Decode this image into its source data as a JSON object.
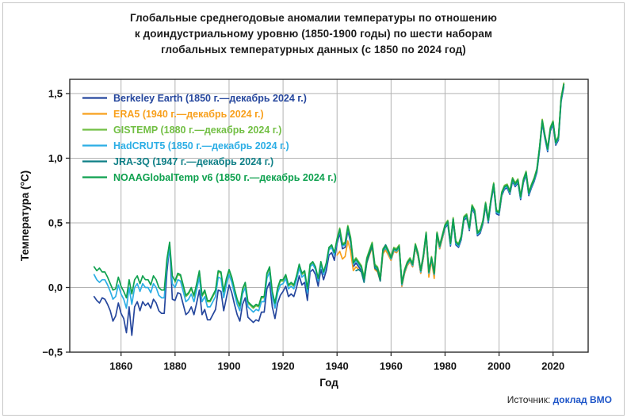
{
  "title": {
    "lines": [
      "Глобальные среднегодовые аномалии температуры по отношению",
      "к доиндустриальному уровню (1850-1900 годы) по шести наборам",
      "глобальных температурных данных (с 1850 по 2024 год)"
    ],
    "color": "#1c1c1c"
  },
  "source": {
    "label": "Источник:",
    "link": "доклад ВМО",
    "link_color": "#1f56c8"
  },
  "colors": {
    "frame": "#2b2b2b",
    "grid": "#b3b3b3",
    "tick_text": "#111111"
  },
  "chart_data": {
    "type": "line",
    "title": "Глобальные среднегодовые аномалии температуры по отношению к доиндустриальному уровню (1850-1900 годы) по шести наборам глобальных температурных данных (с 1850 по 2024 год)",
    "xlabel": "Год",
    "ylabel": "Температура (°C)",
    "xlim": [
      1841,
      2033
    ],
    "ylim": [
      -0.5,
      1.61
    ],
    "x_ticks": [
      1860,
      1880,
      1900,
      1920,
      1940,
      1960,
      1980,
      2000,
      2020
    ],
    "y_ticks": [
      -0.5,
      0.0,
      0.5,
      1.0,
      1.5
    ],
    "y_tick_labels": [
      "−0,5",
      "0,0",
      "0,5",
      "1,0",
      "1,5"
    ],
    "grid": true,
    "legend_position": "upper-left",
    "series": [
      {
        "name": "Berkeley Earth",
        "label": "Berkeley Earth (1850 г.—декабрь 2024 г.)",
        "color": "#26479d",
        "start_year": 1850,
        "values": [
          -0.07,
          -0.1,
          -0.12,
          -0.08,
          -0.09,
          -0.13,
          -0.18,
          -0.26,
          -0.22,
          -0.12,
          -0.2,
          -0.24,
          -0.35,
          -0.15,
          -0.37,
          -0.15,
          -0.11,
          -0.18,
          -0.11,
          -0.14,
          -0.12,
          -0.16,
          -0.09,
          -0.12,
          -0.18,
          -0.2,
          -0.2,
          0.12,
          0.33,
          -0.09,
          -0.1,
          -0.04,
          -0.05,
          -0.13,
          -0.21,
          -0.19,
          -0.15,
          -0.21,
          -0.12,
          -0.02,
          -0.21,
          -0.17,
          -0.25,
          -0.25,
          -0.21,
          -0.17,
          -0.02,
          -0.03,
          -0.18,
          -0.08,
          0.02,
          -0.04,
          -0.13,
          -0.21,
          -0.26,
          -0.13,
          -0.08,
          -0.23,
          -0.25,
          -0.27,
          -0.25,
          -0.26,
          -0.19,
          -0.19,
          -0.01,
          0.04,
          -0.15,
          -0.24,
          -0.12,
          -0.06,
          -0.03,
          0.01,
          -0.07,
          -0.05,
          -0.07,
          0.0,
          0.09,
          0.02,
          0.04,
          -0.1,
          0.12,
          0.14,
          0.1,
          0.01,
          0.14,
          0.06,
          0.13,
          0.25,
          0.27,
          0.21,
          0.34,
          0.42,
          0.3,
          0.31,
          0.44,
          0.35,
          0.16,
          0.19,
          0.16,
          0.13,
          0.05,
          0.2,
          0.26,
          0.32,
          0.15,
          0.13,
          0.05,
          0.27,
          0.3,
          0.26,
          0.21,
          0.28,
          0.27,
          0.3,
          0.01,
          0.11,
          0.17,
          0.2,
          0.16,
          0.31,
          0.24,
          0.11,
          0.23,
          0.4,
          0.1,
          0.21,
          0.09,
          0.4,
          0.3,
          0.38,
          0.46,
          0.49,
          0.32,
          0.51,
          0.33,
          0.31,
          0.37,
          0.52,
          0.54,
          0.44,
          0.61,
          0.57,
          0.4,
          0.42,
          0.49,
          0.63,
          0.5,
          0.66,
          0.78,
          0.57,
          0.56,
          0.71,
          0.76,
          0.77,
          0.72,
          0.82,
          0.78,
          0.81,
          0.68,
          0.81,
          0.87,
          0.71,
          0.77,
          0.82,
          0.89,
          1.06,
          1.27,
          1.15,
          1.05,
          1.21,
          1.26,
          1.1,
          1.14,
          1.44,
          1.55
        ]
      },
      {
        "name": "ERA5",
        "label": "ERA5 (1940 г.—декабрь 2024 г.)",
        "color": "#f8a01d",
        "start_year": 1940,
        "values": [
          0.25,
          0.28,
          0.22,
          0.24,
          0.36,
          0.28,
          0.13,
          0.16,
          0.14,
          0.12,
          0.05,
          0.19,
          0.25,
          0.31,
          0.14,
          0.12,
          0.05,
          0.26,
          0.29,
          0.25,
          0.21,
          0.28,
          0.27,
          0.3,
          0.01,
          0.11,
          0.17,
          0.2,
          0.16,
          0.31,
          0.24,
          0.11,
          0.23,
          0.4,
          0.08,
          0.21,
          0.07,
          0.4,
          0.3,
          0.38,
          0.47,
          0.51,
          0.34,
          0.53,
          0.35,
          0.33,
          0.38,
          0.54,
          0.55,
          0.45,
          0.63,
          0.59,
          0.42,
          0.43,
          0.5,
          0.65,
          0.52,
          0.68,
          0.8,
          0.59,
          0.57,
          0.72,
          0.78,
          0.79,
          0.73,
          0.84,
          0.8,
          0.82,
          0.7,
          0.83,
          0.89,
          0.73,
          0.79,
          0.84,
          0.91,
          1.08,
          1.3,
          1.17,
          1.07,
          1.23,
          1.28,
          1.11,
          1.16,
          1.47,
          1.58
        ]
      },
      {
        "name": "GISTEMP",
        "label": "GISTEMP (1880 г.—декабрь 2024 г.)",
        "color": "#72bf44",
        "start_year": 1880,
        "values": [
          0.04,
          0.1,
          0.09,
          0.01,
          -0.07,
          -0.05,
          -0.01,
          -0.07,
          0.02,
          0.12,
          -0.07,
          -0.03,
          -0.11,
          -0.11,
          -0.07,
          -0.03,
          0.12,
          0.11,
          -0.04,
          0.06,
          0.13,
          0.07,
          -0.02,
          -0.1,
          -0.15,
          -0.02,
          0.03,
          -0.12,
          -0.14,
          -0.16,
          -0.14,
          -0.15,
          -0.08,
          -0.08,
          0.1,
          0.15,
          -0.04,
          -0.13,
          -0.01,
          0.05,
          0.05,
          0.09,
          0.01,
          0.03,
          0.01,
          0.08,
          0.17,
          0.1,
          0.12,
          -0.02,
          0.17,
          0.19,
          0.15,
          0.06,
          0.19,
          0.11,
          0.18,
          0.3,
          0.32,
          0.26,
          0.38,
          0.46,
          0.34,
          0.35,
          0.48,
          0.39,
          0.2,
          0.23,
          0.2,
          0.17,
          0.08,
          0.23,
          0.29,
          0.35,
          0.18,
          0.16,
          0.08,
          0.3,
          0.33,
          0.29,
          0.24,
          0.31,
          0.3,
          0.33,
          0.04,
          0.14,
          0.2,
          0.23,
          0.19,
          0.34,
          0.27,
          0.14,
          0.26,
          0.43,
          0.13,
          0.24,
          0.12,
          0.43,
          0.33,
          0.41,
          0.49,
          0.52,
          0.35,
          0.54,
          0.36,
          0.34,
          0.4,
          0.55,
          0.57,
          0.47,
          0.64,
          0.6,
          0.43,
          0.45,
          0.52,
          0.66,
          0.53,
          0.69,
          0.81,
          0.6,
          0.59,
          0.74,
          0.79,
          0.8,
          0.75,
          0.85,
          0.81,
          0.84,
          0.71,
          0.84,
          0.9,
          0.74,
          0.8,
          0.85,
          0.92,
          1.09,
          1.3,
          1.18,
          1.08,
          1.24,
          1.29,
          1.13,
          1.17,
          1.47,
          1.58
        ]
      },
      {
        "name": "HadCRUT5",
        "label": "HadCRUT5 (1850 г.—декабрь 2024 г.)",
        "color": "#2caee5",
        "start_year": 1850,
        "values": [
          0.1,
          0.06,
          0.04,
          0.06,
          0.06,
          0.02,
          -0.03,
          -0.09,
          -0.07,
          0.02,
          -0.05,
          -0.09,
          -0.16,
          0.0,
          -0.13,
          0.0,
          0.03,
          -0.03,
          0.03,
          0.0,
          0.0,
          -0.04,
          0.03,
          0.0,
          -0.06,
          -0.08,
          -0.08,
          0.18,
          0.31,
          0.03,
          0.0,
          0.06,
          0.05,
          -0.03,
          -0.11,
          -0.09,
          -0.05,
          -0.11,
          -0.02,
          0.08,
          -0.11,
          -0.07,
          -0.15,
          -0.15,
          -0.11,
          -0.07,
          0.08,
          0.07,
          -0.08,
          0.02,
          0.1,
          0.04,
          -0.05,
          -0.13,
          -0.18,
          -0.05,
          0.0,
          -0.15,
          -0.17,
          -0.19,
          -0.17,
          -0.18,
          -0.11,
          -0.11,
          0.07,
          0.12,
          -0.07,
          -0.16,
          -0.04,
          0.02,
          0.03,
          0.07,
          -0.01,
          0.01,
          -0.01,
          0.06,
          0.15,
          0.08,
          0.1,
          -0.04,
          0.16,
          0.18,
          0.14,
          0.05,
          0.18,
          0.1,
          0.17,
          0.29,
          0.31,
          0.25,
          0.36,
          0.44,
          0.32,
          0.33,
          0.46,
          0.37,
          0.18,
          0.21,
          0.18,
          0.15,
          0.06,
          0.21,
          0.27,
          0.33,
          0.16,
          0.14,
          0.06,
          0.28,
          0.31,
          0.27,
          0.22,
          0.29,
          0.28,
          0.31,
          0.02,
          0.12,
          0.18,
          0.21,
          0.17,
          0.32,
          0.25,
          0.12,
          0.24,
          0.41,
          0.11,
          0.22,
          0.1,
          0.41,
          0.31,
          0.39,
          0.47,
          0.5,
          0.33,
          0.52,
          0.34,
          0.32,
          0.38,
          0.53,
          0.55,
          0.45,
          0.62,
          0.58,
          0.41,
          0.43,
          0.5,
          0.64,
          0.51,
          0.67,
          0.79,
          0.58,
          0.57,
          0.72,
          0.77,
          0.78,
          0.73,
          0.83,
          0.79,
          0.82,
          0.69,
          0.82,
          0.88,
          0.72,
          0.78,
          0.83,
          0.9,
          1.07,
          1.28,
          1.16,
          1.06,
          1.22,
          1.27,
          1.11,
          1.15,
          1.45,
          1.56
        ]
      },
      {
        "name": "JRA-3Q",
        "label": "JRA-3Q (1947 г.—декабрь 2024 г.)",
        "color": "#0e7f86",
        "start_year": 1947,
        "values": [
          0.13,
          0.14,
          0.12,
          0.04,
          0.19,
          0.26,
          0.32,
          0.15,
          0.13,
          0.05,
          0.29,
          0.33,
          0.28,
          0.23,
          0.3,
          0.29,
          0.32,
          0.03,
          0.13,
          0.19,
          0.22,
          0.18,
          0.33,
          0.26,
          0.13,
          0.25,
          0.42,
          0.12,
          0.23,
          0.11,
          0.42,
          0.32,
          0.4,
          0.48,
          0.51,
          0.34,
          0.53,
          0.35,
          0.33,
          0.39,
          0.54,
          0.56,
          0.46,
          0.63,
          0.59,
          0.42,
          0.44,
          0.51,
          0.65,
          0.52,
          0.68,
          0.8,
          0.59,
          0.58,
          0.73,
          0.78,
          0.79,
          0.74,
          0.84,
          0.8,
          0.83,
          0.7,
          0.83,
          0.89,
          0.73,
          0.79,
          0.84,
          0.91,
          1.08,
          1.29,
          1.17,
          1.07,
          1.23,
          1.28,
          1.12,
          1.16,
          1.46,
          1.57
        ]
      },
      {
        "name": "NOAAGlobalTemp v6",
        "label": "NOAAGlobalTemp v6 (1850 г.—декабрь 2024 г.)",
        "color": "#0fa14f",
        "start_year": 1850,
        "values": [
          0.16,
          0.13,
          0.15,
          0.12,
          0.12,
          0.08,
          0.03,
          -0.02,
          -0.01,
          0.08,
          0.01,
          -0.03,
          -0.08,
          0.06,
          -0.05,
          0.06,
          0.09,
          0.03,
          0.09,
          0.06,
          0.06,
          0.02,
          0.09,
          0.06,
          0.0,
          -0.02,
          -0.02,
          0.22,
          0.35,
          0.09,
          0.05,
          0.11,
          0.1,
          0.02,
          -0.06,
          -0.04,
          0.0,
          -0.06,
          0.03,
          0.13,
          -0.06,
          -0.02,
          -0.1,
          -0.1,
          -0.06,
          -0.02,
          0.13,
          0.12,
          -0.03,
          0.07,
          0.14,
          0.08,
          -0.01,
          -0.09,
          -0.14,
          -0.01,
          0.04,
          -0.11,
          -0.13,
          -0.15,
          -0.13,
          -0.14,
          -0.07,
          -0.07,
          0.11,
          0.16,
          -0.03,
          -0.12,
          0.0,
          0.06,
          0.06,
          0.1,
          0.02,
          0.04,
          0.02,
          0.09,
          0.18,
          0.11,
          0.13,
          -0.01,
          0.18,
          0.2,
          0.16,
          0.07,
          0.2,
          0.12,
          0.19,
          0.31,
          0.33,
          0.27,
          0.37,
          0.45,
          0.33,
          0.34,
          0.47,
          0.38,
          0.19,
          0.22,
          0.19,
          0.16,
          0.07,
          0.22,
          0.28,
          0.34,
          0.17,
          0.15,
          0.07,
          0.29,
          0.32,
          0.28,
          0.23,
          0.3,
          0.29,
          0.32,
          0.03,
          0.13,
          0.19,
          0.22,
          0.18,
          0.33,
          0.26,
          0.13,
          0.25,
          0.42,
          0.12,
          0.23,
          0.11,
          0.42,
          0.32,
          0.4,
          0.48,
          0.51,
          0.34,
          0.53,
          0.35,
          0.33,
          0.39,
          0.54,
          0.56,
          0.46,
          0.63,
          0.59,
          0.42,
          0.44,
          0.51,
          0.65,
          0.52,
          0.68,
          0.8,
          0.59,
          0.58,
          0.73,
          0.78,
          0.79,
          0.74,
          0.84,
          0.8,
          0.83,
          0.7,
          0.83,
          0.89,
          0.73,
          0.79,
          0.84,
          0.91,
          1.08,
          1.29,
          1.17,
          1.07,
          1.23,
          1.28,
          1.12,
          1.16,
          1.46,
          1.57
        ]
      }
    ]
  }
}
